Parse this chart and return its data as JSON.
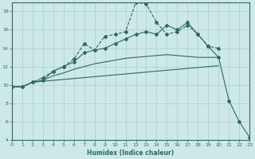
{
  "xlabel": "Humidex (Indice chaleur)",
  "xlim": [
    0,
    23
  ],
  "ylim": [
    4,
    19
  ],
  "yticks": [
    4,
    6,
    8,
    10,
    12,
    14,
    16,
    18
  ],
  "xticks": [
    0,
    1,
    2,
    3,
    4,
    5,
    6,
    7,
    8,
    9,
    10,
    11,
    12,
    13,
    14,
    15,
    16,
    17,
    18,
    19,
    20,
    21,
    22,
    23
  ],
  "bg_color": "#cce8e8",
  "line_color": "#2e6b5e",
  "grid_color": "#aacfcf",
  "lines": [
    {
      "x": [
        0,
        1,
        2,
        3,
        4,
        5,
        6,
        7,
        8,
        9,
        10,
        11,
        12,
        13,
        14,
        15,
        16,
        17,
        18,
        19,
        20
      ],
      "y": [
        9.8,
        9.8,
        10.3,
        10.4,
        10.5,
        10.6,
        10.7,
        10.8,
        10.9,
        11.0,
        11.1,
        11.2,
        11.3,
        11.4,
        11.5,
        11.6,
        11.7,
        11.8,
        11.9,
        12.0,
        12.1
      ],
      "dashed": false,
      "marker": false
    },
    {
      "x": [
        0,
        1,
        2,
        3,
        4,
        5,
        6,
        7,
        8,
        9,
        10,
        11,
        12,
        13,
        14,
        15,
        16,
        17,
        18,
        19,
        20
      ],
      "y": [
        9.8,
        9.8,
        10.3,
        10.5,
        11.0,
        11.3,
        11.7,
        12.0,
        12.3,
        12.5,
        12.7,
        12.9,
        13.0,
        13.1,
        13.2,
        13.3,
        13.2,
        13.1,
        13.0,
        13.0,
        13.0
      ],
      "dashed": false,
      "marker": false
    },
    {
      "x": [
        0,
        1,
        2,
        3,
        4,
        5,
        6,
        7,
        8,
        9,
        10,
        11,
        12,
        13,
        14,
        15,
        16,
        17,
        18,
        19,
        20,
        21,
        22,
        23
      ],
      "y": [
        9.8,
        9.8,
        10.3,
        10.5,
        11.5,
        12.0,
        12.5,
        13.5,
        13.8,
        14.0,
        14.5,
        15.0,
        15.5,
        15.8,
        15.5,
        16.5,
        16.0,
        16.8,
        15.5,
        14.2,
        13.0,
        8.3,
        6.0,
        4.3
      ],
      "dashed": false,
      "marker": true
    },
    {
      "x": [
        0,
        1,
        2,
        3,
        4,
        5,
        6,
        7,
        8,
        9,
        10,
        11,
        12,
        13,
        14,
        15,
        16,
        17,
        18,
        19,
        20
      ],
      "y": [
        9.8,
        9.8,
        10.3,
        10.8,
        11.5,
        12.0,
        12.8,
        14.5,
        13.8,
        15.3,
        15.5,
        15.8,
        19.0,
        18.8,
        16.8,
        15.5,
        15.8,
        16.5,
        15.5,
        14.2,
        14.0
      ],
      "dashed": true,
      "marker": true
    }
  ]
}
